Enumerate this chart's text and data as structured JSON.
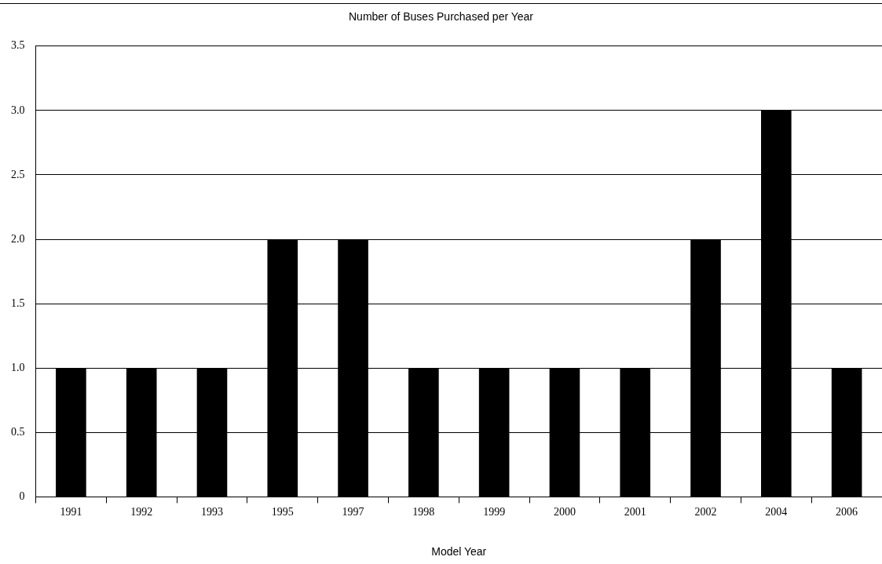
{
  "chart_data": {
    "type": "bar",
    "title": "Number of Buses Purchased per Year",
    "xlabel": "Model Year",
    "categories": [
      "1991",
      "1992",
      "1993",
      "1995",
      "1997",
      "1998",
      "1999",
      "2000",
      "2001",
      "2002",
      "2004",
      "2006"
    ],
    "values": [
      1,
      1,
      1,
      2,
      2,
      1,
      1,
      1,
      1,
      2,
      3,
      1
    ],
    "color": "#000000",
    "ylim": [
      0,
      3.5
    ],
    "yticks": [
      0,
      0.5,
      {
        "value": 1,
        "label": "1.0"
      },
      1.5,
      {
        "value": 2,
        "label": "2.0"
      },
      2.5,
      {
        "value": 3,
        "label": "3.0"
      },
      3.5
    ],
    "grid": "y",
    "legend": false
  }
}
